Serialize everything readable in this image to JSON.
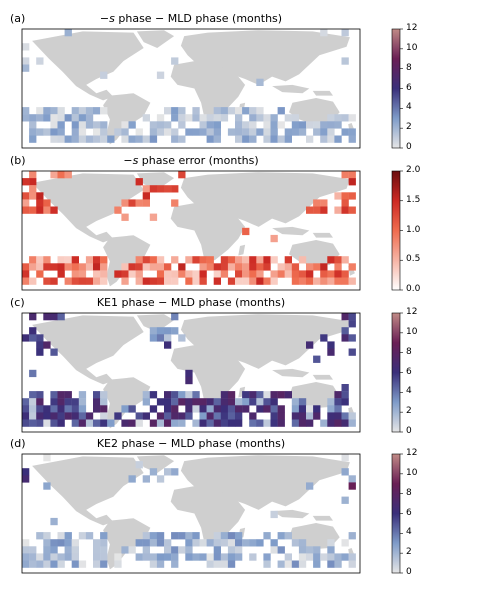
{
  "colors": {
    "land": "#cfcfcf",
    "frame": "#000000",
    "phase_colormap": [
      "#e6e6e6",
      "#7f9cc9",
      "#3a2f7a",
      "#6a1f55",
      "#c08a86"
    ],
    "error_colormap": [
      "#ffffff",
      "#f6b4a5",
      "#ef6c4f",
      "#cc2a24",
      "#6b0d0f"
    ]
  },
  "chart_data": [
    {
      "type": "heatmap",
      "panel_label": "(a)",
      "title_prefix": "−",
      "title_symbol": "s",
      "title_rest": " phase − MLD phase (months)",
      "colorbar": {
        "ticks": [
          "0",
          "2",
          "4",
          "6",
          "8",
          "10",
          "12"
        ],
        "range": [
          0,
          12
        ],
        "colormap": "phase_colormap"
      },
      "regions": {
        "north_pacific": "scattered light blue and grey cells, near 0",
        "north_atlantic": "few cells, mostly near 0",
        "southern_ocean": "band of mostly light blue cells, 0-3 months"
      }
    },
    {
      "type": "heatmap",
      "panel_label": "(b)",
      "title_prefix": "−",
      "title_symbol": "s",
      "title_rest": " phase error (months)",
      "colorbar": {
        "ticks": [
          "0.0",
          "0.5",
          "1.0",
          "1.5",
          "2.0"
        ],
        "range": [
          0,
          2
        ],
        "colormap": "error_colormap"
      },
      "regions": {
        "north_pacific": "many red cells, about 0.7-1.5 months",
        "north_atlantic": "red cells, about 0.7-1.5 months",
        "southern_ocean": "dense band of red cells, about 0.5-1.5 months"
      }
    },
    {
      "type": "heatmap",
      "panel_label": "(c)",
      "title_text": "KE1 phase − MLD phase (months)",
      "colorbar": {
        "ticks": [
          "0",
          "2",
          "4",
          "6",
          "8",
          "10",
          "12"
        ],
        "range": [
          0,
          12
        ],
        "colormap": "phase_colormap"
      },
      "regions": {
        "north_pacific": "dark purple cells, about 5-7 months",
        "north_atlantic": "mixed purple and blue cells",
        "southern_ocean": "dense band of dark purple cells with some blue, about 4-8 months"
      }
    },
    {
      "type": "heatmap",
      "panel_label": "(d)",
      "title_text": "KE2 phase − MLD phase (months)",
      "colorbar": {
        "ticks": [
          "0",
          "2",
          "4",
          "6",
          "8",
          "10",
          "12"
        ],
        "range": [
          0,
          12
        ],
        "colormap": "phase_colormap"
      },
      "regions": {
        "north_pacific": "scattered light blue cells, about 1-3 months",
        "north_atlantic": "light blue cells, about 1-2 months",
        "southern_ocean": "band of mostly light blue cells, about 0-3 months"
      }
    }
  ]
}
